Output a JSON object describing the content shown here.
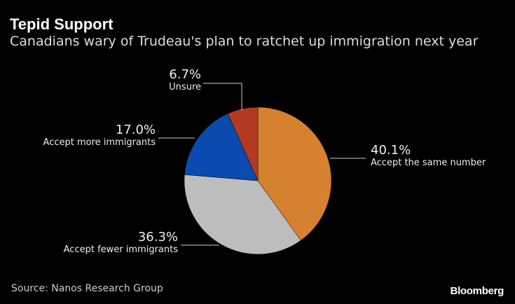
{
  "chart_data": {
    "type": "pie",
    "title": "Tepid Support",
    "subtitle": "Canadians wary of Trudeau's plan to ratchet up immigration next year",
    "start": "12 o'clock, clockwise",
    "slices": [
      {
        "label": "Accept the same number",
        "value": 40.1,
        "display": "40.1%",
        "color": "#d6812f"
      },
      {
        "label": "Accept fewer immigrants",
        "value": 36.3,
        "display": "36.3%",
        "color": "#bdbdbd"
      },
      {
        "label": "Accept more immigrants",
        "value": 17.0,
        "display": "17.0%",
        "color": "#0b4aae"
      },
      {
        "label": "Unsure",
        "value": 6.7,
        "display": "6.7%",
        "color": "#b23a22"
      }
    ]
  },
  "footer": {
    "source": "Source: Nanos Research Group",
    "brand": "Bloomberg"
  }
}
